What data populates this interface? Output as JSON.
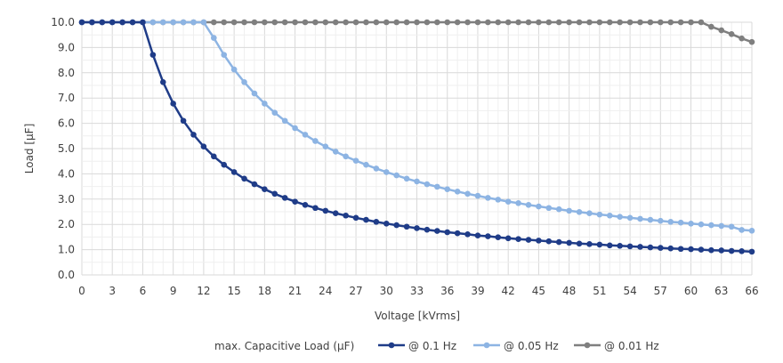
{
  "chart_data": {
    "type": "line",
    "xlabel": "Voltage [kVrms]",
    "ylabel": "Load [µF]",
    "xlim": [
      0,
      66
    ],
    "ylim": [
      0,
      10
    ],
    "x_ticks": [
      "0",
      "3",
      "6",
      "9",
      "12",
      "15",
      "18",
      "21",
      "24",
      "27",
      "30",
      "33",
      "36",
      "39",
      "42",
      "45",
      "48",
      "51",
      "54",
      "57",
      "60",
      "63",
      "66"
    ],
    "y_ticks": [
      "0.0",
      "1.0",
      "2.0",
      "3.0",
      "4.0",
      "5.0",
      "6.0",
      "7.0",
      "8.0",
      "9.0",
      "10.0"
    ],
    "grid": "major and minor",
    "legend_title": "max. Capacitive Load (µF)",
    "legend_position": "bottom",
    "x": [
      0,
      1,
      2,
      3,
      4,
      5,
      6,
      7,
      8,
      9,
      10,
      11,
      12,
      13,
      14,
      15,
      16,
      17,
      18,
      19,
      20,
      21,
      22,
      23,
      24,
      25,
      26,
      27,
      28,
      29,
      30,
      31,
      32,
      33,
      34,
      35,
      36,
      37,
      38,
      39,
      40,
      41,
      42,
      43,
      44,
      45,
      46,
      47,
      48,
      49,
      50,
      51,
      52,
      53,
      54,
      55,
      56,
      57,
      58,
      59,
      60,
      61,
      62,
      63,
      64,
      65,
      66
    ],
    "series": [
      {
        "name": "@ 0.1 Hz",
        "color": "#1f3c88",
        "values": [
          10,
          10,
          10,
          10,
          10,
          10,
          10,
          8.71,
          7.63,
          6.78,
          6.1,
          5.55,
          5.08,
          4.69,
          4.36,
          4.07,
          3.81,
          3.59,
          3.39,
          3.21,
          3.05,
          2.9,
          2.77,
          2.65,
          2.54,
          2.44,
          2.35,
          2.26,
          2.18,
          2.1,
          2.03,
          1.97,
          1.91,
          1.85,
          1.79,
          1.74,
          1.69,
          1.65,
          1.61,
          1.56,
          1.53,
          1.49,
          1.45,
          1.42,
          1.39,
          1.36,
          1.33,
          1.3,
          1.27,
          1.24,
          1.22,
          1.2,
          1.17,
          1.15,
          1.13,
          1.11,
          1.09,
          1.07,
          1.05,
          1.03,
          1.02,
          1.0,
          0.98,
          0.97,
          0.95,
          0.94,
          0.92
        ]
      },
      {
        "name": "@ 0.05 Hz",
        "color": "#8db4e3",
        "values": [
          10,
          10,
          10,
          10,
          10,
          10,
          10,
          10,
          10,
          10,
          10,
          10,
          10,
          9.38,
          8.71,
          8.13,
          7.63,
          7.18,
          6.78,
          6.42,
          6.1,
          5.81,
          5.55,
          5.3,
          5.08,
          4.88,
          4.69,
          4.52,
          4.36,
          4.21,
          4.07,
          3.94,
          3.81,
          3.7,
          3.59,
          3.49,
          3.39,
          3.3,
          3.21,
          3.13,
          3.05,
          2.98,
          2.9,
          2.84,
          2.77,
          2.71,
          2.65,
          2.6,
          2.54,
          2.49,
          2.44,
          2.39,
          2.35,
          2.3,
          2.26,
          2.22,
          2.18,
          2.14,
          2.1,
          2.07,
          2.03,
          2.0,
          1.97,
          1.94,
          1.91,
          1.78,
          1.75
        ]
      },
      {
        "name": "@ 0.01 Hz",
        "color": "#7f7f7f",
        "values": [
          10,
          10,
          10,
          10,
          10,
          10,
          10,
          10,
          10,
          10,
          10,
          10,
          10,
          10,
          10,
          10,
          10,
          10,
          10,
          10,
          10,
          10,
          10,
          10,
          10,
          10,
          10,
          10,
          10,
          10,
          10,
          10,
          10,
          10,
          10,
          10,
          10,
          10,
          10,
          10,
          10,
          10,
          10,
          10,
          10,
          10,
          10,
          10,
          10,
          10,
          10,
          10,
          10,
          10,
          10,
          10,
          10,
          10,
          10,
          10,
          10,
          10,
          9.82,
          9.68,
          9.53,
          9.36,
          9.22
        ]
      }
    ]
  }
}
